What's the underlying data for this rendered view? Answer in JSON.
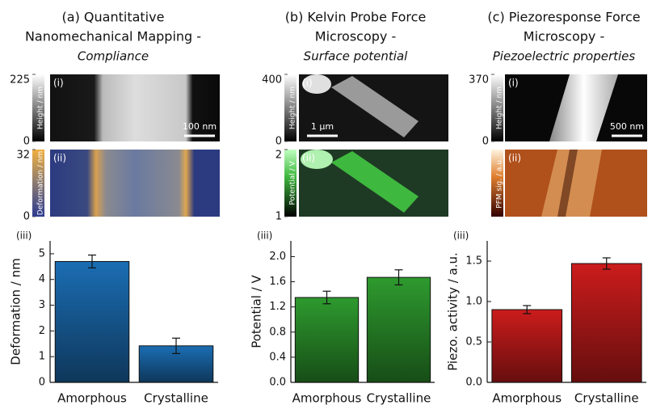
{
  "chart_data": [
    {
      "type": "bar",
      "title": [
        "(a) Quantitative",
        "Nanomechanical Mapping -"
      ],
      "subtitle": "Compliance",
      "maps": [
        {
          "label": "(i)",
          "colorbar_label": "Height / nm",
          "colorbar_ticks": [
            0,
            225
          ],
          "scale_bar": "100 nm"
        },
        {
          "label": "(ii)",
          "colorbar_label": "Deformation / nm",
          "colorbar_ticks": [
            0,
            32
          ]
        }
      ],
      "panel_label": "(iii)",
      "y_label": "Deformation / nm",
      "categories": [
        "Amorphous",
        "Crystalline"
      ],
      "values": [
        4.7,
        1.42
      ],
      "errors": [
        0.25,
        0.3
      ],
      "color": "#1b6db3",
      "ylim": [
        0,
        5.5
      ],
      "yticks": [
        0,
        1,
        2,
        3,
        4,
        5
      ]
    },
    {
      "type": "bar",
      "title": [
        "(b) Kelvin Probe Force",
        "Microscopy -"
      ],
      "subtitle": "Surface potential",
      "maps": [
        {
          "label": "(i)",
          "colorbar_label": "Height / nm",
          "colorbar_ticks": [
            0,
            400
          ],
          "scale_bar": "1 µm"
        },
        {
          "label": "(ii)",
          "colorbar_label": "Potential / V",
          "colorbar_ticks": [
            1,
            2
          ]
        }
      ],
      "panel_label": "(iii)",
      "y_label": "Potential / V",
      "categories": [
        "Amorphous",
        "Crystalline"
      ],
      "values": [
        1.35,
        1.67
      ],
      "errors": [
        0.1,
        0.12
      ],
      "color": "#2e9a2e",
      "ylim": [
        0,
        2.25
      ],
      "yticks": [
        {
          "value": 0,
          "label": "0.0"
        },
        0.4,
        0.8,
        1.2,
        1.6,
        {
          "value": 2,
          "label": "2.0"
        }
      ]
    },
    {
      "type": "bar",
      "title": [
        "(c) Piezoresponse Force",
        "Microscopy -"
      ],
      "subtitle": "Piezoelectric properties",
      "maps": [
        {
          "label": "(i)",
          "colorbar_label": "Height / nm",
          "colorbar_ticks": [
            0,
            370
          ],
          "scale_bar": "500 nm"
        },
        {
          "label": "(ii)",
          "colorbar_label": "PFM sig. / a.u.",
          "colorbar_ticks": []
        }
      ],
      "panel_label": "(iii)",
      "y_label": "Piezo. activity / a.u.",
      "categories": [
        "Amorphous",
        "Crystalline"
      ],
      "values": [
        0.9,
        1.47
      ],
      "errors": [
        0.05,
        0.07
      ],
      "color": "#cc1c1c",
      "ylim": [
        0,
        1.75
      ],
      "yticks": [
        {
          "value": 0,
          "label": "0.0"
        },
        0.5,
        {
          "value": 1,
          "label": "1.0"
        },
        1.5
      ]
    }
  ]
}
